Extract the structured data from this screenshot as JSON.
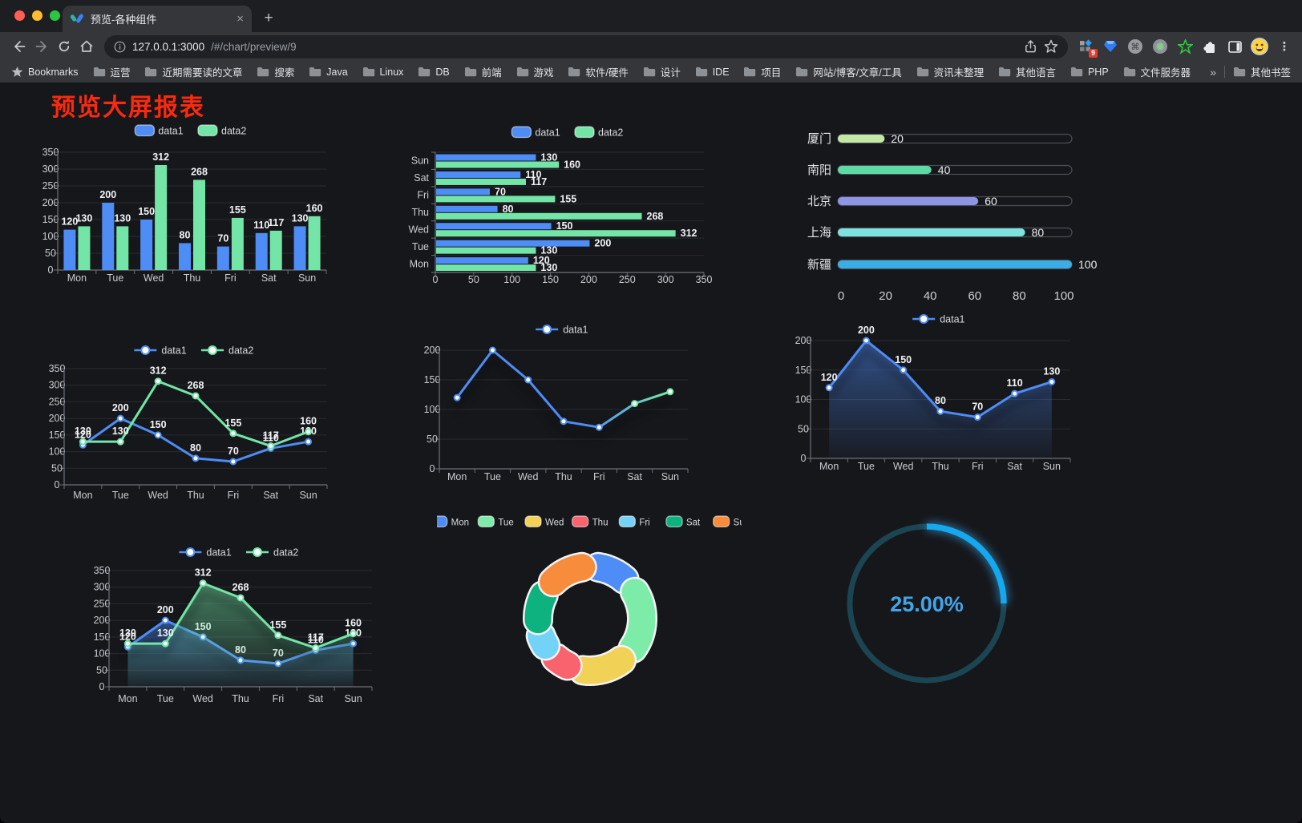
{
  "browser": {
    "tab_title": "预览-各种组件",
    "tab_close_icon": "×",
    "new_tab_icon": "+",
    "url_host": "127.0.0.1:3000",
    "url_path": "/#/chart/preview/9",
    "bookmarks_label": "Bookmarks",
    "bookmarks": [
      "运营",
      "近期需要读的文章",
      "搜索",
      "Java",
      "Linux",
      "DB",
      "前端",
      "游戏",
      "软件/硬件",
      "设计",
      "IDE",
      "项目",
      "网站/博客/文章/工具",
      "资讯未整理",
      "其他语言",
      "PHP",
      "文件服务器"
    ],
    "bookmarks_overflow_icon": "»",
    "other_bookmarks": "其他书签",
    "extension_badge": "9",
    "menu_icon": "⋮"
  },
  "page": {
    "title": "预览大屏报表",
    "title_color": "#fb2a0e",
    "background": "#16171b"
  },
  "theme": {
    "axis_color": "#6e7179",
    "grid_color": "rgba(255,255,255,0.09)",
    "tick_text": "#c9ccd1",
    "label_text": "#f2f3f5",
    "legend_text": "#d7dadd"
  },
  "chart_data": [
    {
      "id": "bar-vertical",
      "type": "bar",
      "categories": [
        "Mon",
        "Tue",
        "Wed",
        "Thu",
        "Fri",
        "Sat",
        "Sun"
      ],
      "series": [
        {
          "name": "data1",
          "color": "#4e8cf6",
          "values": [
            120,
            200,
            150,
            80,
            70,
            110,
            130
          ]
        },
        {
          "name": "data2",
          "color": "#73e6a7",
          "values": [
            130,
            130,
            312,
            268,
            155,
            117,
            160
          ]
        }
      ],
      "ylim": [
        0,
        350
      ],
      "yticks": [
        0,
        50,
        100,
        150,
        200,
        250,
        300,
        350
      ],
      "legend_position": "top",
      "grid": true,
      "show_labels": true
    },
    {
      "id": "bar-horizontal",
      "type": "bar",
      "orientation": "horizontal",
      "display_order_top_to_bottom": [
        "Sun",
        "Sat",
        "Fri",
        "Thu",
        "Wed",
        "Tue",
        "Mon"
      ],
      "categories": [
        "Mon",
        "Tue",
        "Wed",
        "Thu",
        "Fri",
        "Sat",
        "Sun"
      ],
      "series": [
        {
          "name": "data1",
          "color": "#4e8cf6",
          "values": [
            120,
            200,
            150,
            80,
            70,
            110,
            130
          ]
        },
        {
          "name": "data2",
          "color": "#73e6a7",
          "values": [
            130,
            130,
            312,
            268,
            155,
            117,
            160
          ]
        }
      ],
      "xlim": [
        0,
        350
      ],
      "xticks": [
        0,
        50,
        100,
        150,
        200,
        250,
        300,
        350
      ],
      "legend_position": "top",
      "show_labels": true
    },
    {
      "id": "capsule",
      "type": "bar",
      "style": "capsule-progress",
      "rows": [
        {
          "label": "厦门",
          "value": 20,
          "color": "#c3e8a4"
        },
        {
          "label": "南阳",
          "value": 40,
          "color": "#5cd9a5"
        },
        {
          "label": "北京",
          "value": 60,
          "color": "#8e95e6"
        },
        {
          "label": "上海",
          "value": 80,
          "color": "#7ee2df"
        },
        {
          "label": "新疆",
          "value": 100,
          "color": "#3aade4"
        }
      ],
      "xlim": [
        0,
        100
      ],
      "xticks": [
        0,
        20,
        40,
        60,
        80,
        100
      ]
    },
    {
      "id": "line-dual",
      "type": "line",
      "categories": [
        "Mon",
        "Tue",
        "Wed",
        "Thu",
        "Fri",
        "Sat",
        "Sun"
      ],
      "series": [
        {
          "name": "data1",
          "color": "#4e8cf6",
          "values": [
            120,
            200,
            150,
            80,
            70,
            110,
            130
          ]
        },
        {
          "name": "data2",
          "color": "#73e6a7",
          "values": [
            130,
            130,
            312,
            268,
            155,
            117,
            160
          ]
        }
      ],
      "ylim": [
        0,
        350
      ],
      "yticks": [
        0,
        50,
        100,
        150,
        200,
        250,
        300,
        350
      ],
      "legend_position": "top",
      "show_labels": true
    },
    {
      "id": "line-gradient",
      "type": "line",
      "categories": [
        "Mon",
        "Tue",
        "Wed",
        "Thu",
        "Fri",
        "Sat",
        "Sun"
      ],
      "series": [
        {
          "name": "data1",
          "color": "#4e8cf6",
          "gradient_end": "#73e6a7",
          "values": [
            120,
            200,
            150,
            80,
            70,
            110,
            130
          ]
        }
      ],
      "ylim": [
        0,
        200
      ],
      "yticks": [
        0,
        50,
        100,
        150,
        200
      ],
      "legend_position": "top",
      "show_labels": false,
      "shadow": true
    },
    {
      "id": "area-single",
      "type": "area",
      "categories": [
        "Mon",
        "Tue",
        "Wed",
        "Thu",
        "Fri",
        "Sat",
        "Sun"
      ],
      "series": [
        {
          "name": "data1",
          "color": "#4e8cf6",
          "values": [
            120,
            200,
            150,
            80,
            70,
            110,
            130
          ]
        }
      ],
      "ylim": [
        0,
        200
      ],
      "yticks": [
        0,
        50,
        100,
        150,
        200
      ],
      "legend_position": "top",
      "show_labels": true,
      "shadow": true
    },
    {
      "id": "area-dual",
      "type": "area",
      "categories": [
        "Mon",
        "Tue",
        "Wed",
        "Thu",
        "Fri",
        "Sat",
        "Sun"
      ],
      "series": [
        {
          "name": "data1",
          "color": "#4e8cf6",
          "values": [
            120,
            200,
            150,
            80,
            70,
            110,
            130
          ]
        },
        {
          "name": "data2",
          "color": "#73e6a7",
          "values": [
            130,
            130,
            312,
            268,
            155,
            117,
            160
          ]
        }
      ],
      "ylim": [
        0,
        350
      ],
      "yticks": [
        0,
        50,
        100,
        150,
        200,
        250,
        300,
        350
      ],
      "legend_position": "top",
      "show_labels": true,
      "shadow": true
    },
    {
      "id": "donut",
      "type": "pie",
      "categories": [
        "Mon",
        "Tue",
        "Wed",
        "Thu",
        "Fri",
        "Sat",
        "Sun"
      ],
      "values": [
        120,
        200,
        150,
        80,
        70,
        110,
        130
      ],
      "colors": [
        "#4e8cf6",
        "#7deca9",
        "#f2d157",
        "#f9636d",
        "#73d3f6",
        "#0db27e",
        "#f78c3c"
      ],
      "legend_position": "top",
      "border_color": "#f2f3f5"
    },
    {
      "id": "progress-ring",
      "type": "gauge",
      "value": 25,
      "label": "25.00%",
      "color": "#14a9ee",
      "track_color": "#1b4552",
      "text_color": "#43a5e8"
    }
  ]
}
